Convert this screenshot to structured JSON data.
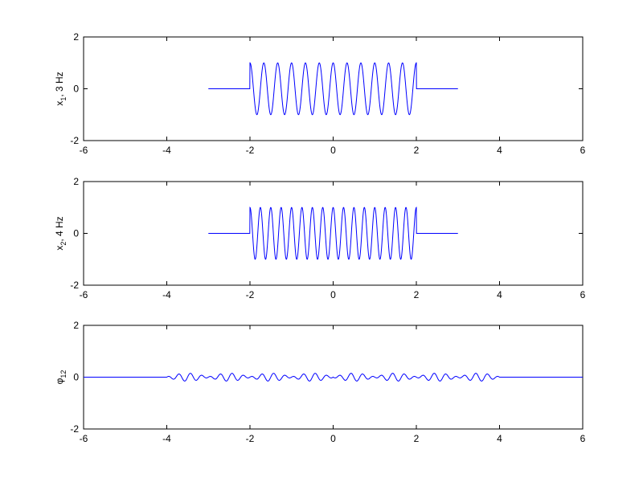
{
  "chart_data": [
    {
      "type": "line",
      "ylabel_main": "x",
      "ylabel_sub": "1",
      "ylabel_rest": ", 3 Hz",
      "xlim": [
        -6,
        6
      ],
      "ylim": [
        -2,
        2
      ],
      "xticks": [
        -6,
        -4,
        -2,
        0,
        2,
        4,
        6
      ],
      "yticks": [
        -2,
        0,
        2
      ],
      "grid": false,
      "color": "#0000ff",
      "series": [
        {
          "kind": "windowed-cosine",
          "frequency_hz": 3,
          "amplitude": 1,
          "signal_window": [
            -2,
            2
          ],
          "x_range": [
            -3,
            3
          ]
        }
      ]
    },
    {
      "type": "line",
      "ylabel_main": "x",
      "ylabel_sub": "2",
      "ylabel_rest": ", 4 Hz",
      "xlim": [
        -6,
        6
      ],
      "ylim": [
        -2,
        2
      ],
      "xticks": [
        -6,
        -4,
        -2,
        0,
        2,
        4,
        6
      ],
      "yticks": [
        -2,
        0,
        2
      ],
      "grid": false,
      "color": "#0000ff",
      "series": [
        {
          "kind": "windowed-cosine",
          "frequency_hz": 4,
          "amplitude": 1,
          "signal_window": [
            -2,
            2
          ],
          "x_range": [
            -3,
            3
          ]
        }
      ]
    },
    {
      "type": "line",
      "ylabel_main": "φ",
      "ylabel_sub": "12",
      "ylabel_rest": "",
      "xlim": [
        -6,
        6
      ],
      "ylim": [
        -2,
        2
      ],
      "xticks": [
        -6,
        -4,
        -2,
        0,
        2,
        4,
        6
      ],
      "yticks": [
        -2,
        0,
        2
      ],
      "grid": false,
      "color": "#0000ff",
      "series": [
        {
          "kind": "cross-correlation",
          "peak_amplitude": 0.15,
          "nonzero_range": [
            -4,
            4
          ],
          "x_range": [
            -6,
            6
          ]
        }
      ]
    }
  ]
}
